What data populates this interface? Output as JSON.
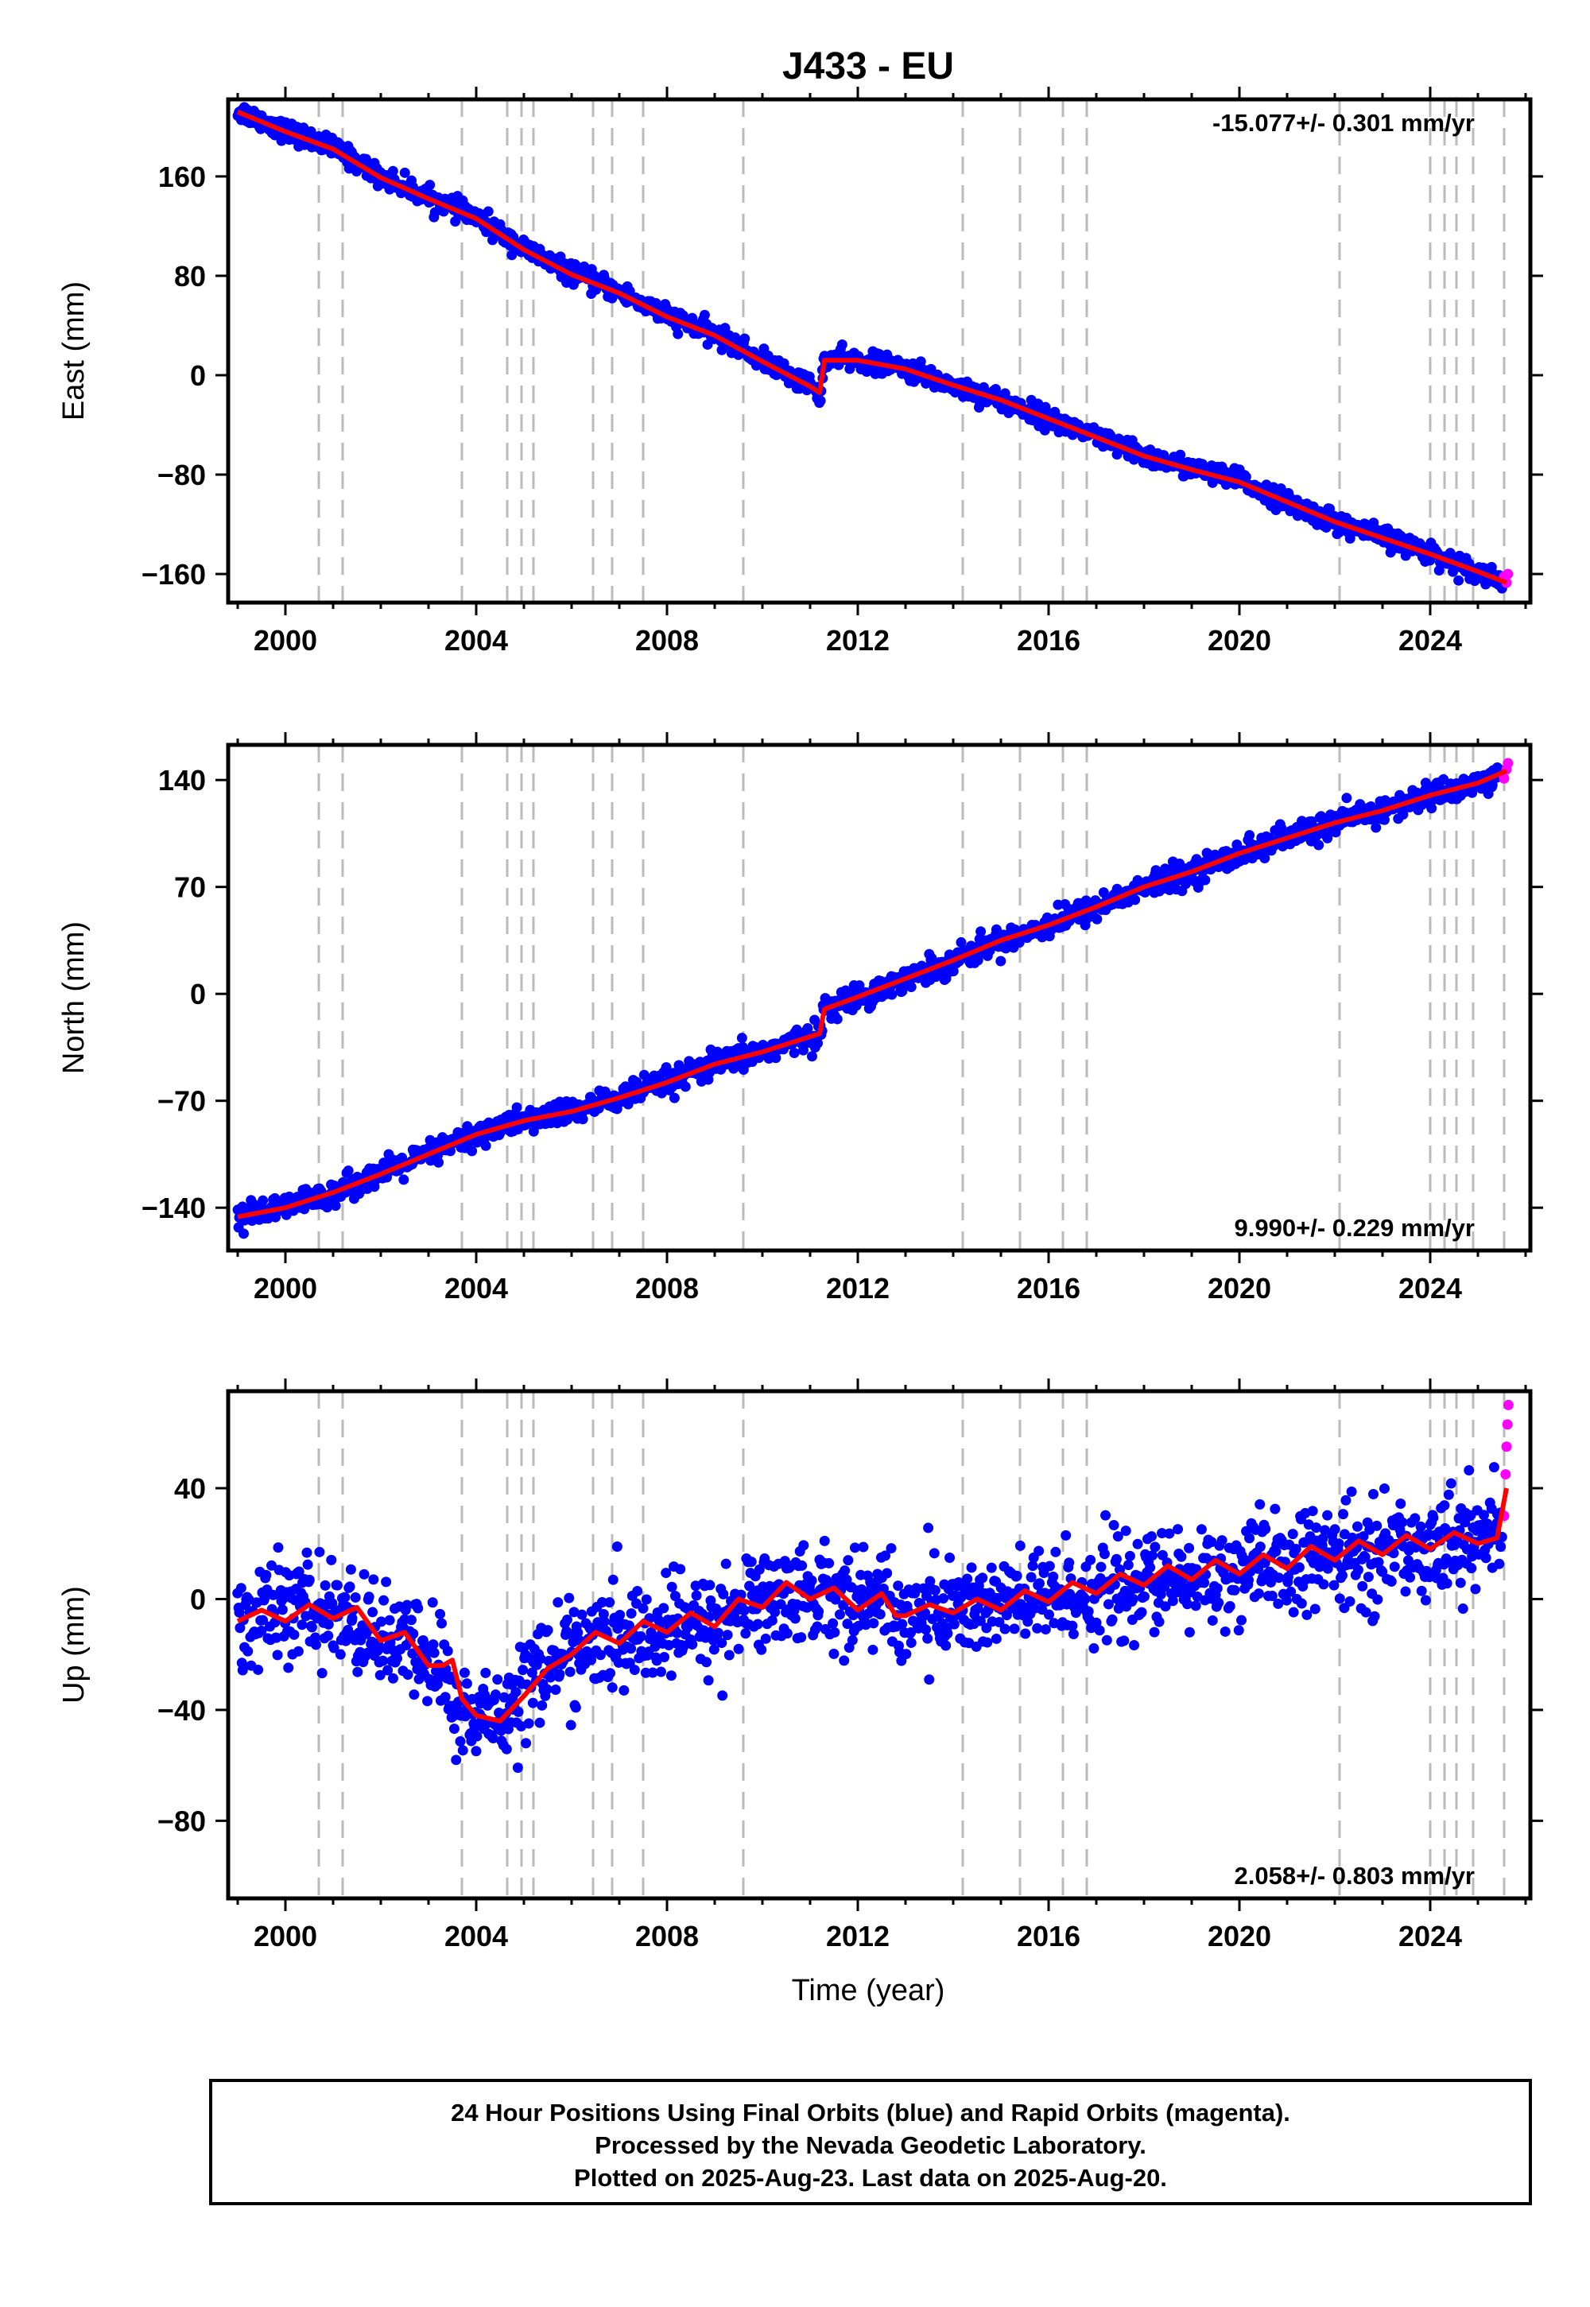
{
  "title": "J433 - EU",
  "colors": {
    "final_orbits": "#0000ff",
    "rapid_orbits": "#ff00ff",
    "model": "#ff0000",
    "event_line": "#bbbbbb"
  },
  "footer": {
    "line1": "24 Hour Positions Using Final Orbits (blue) and Rapid Orbits (magenta).",
    "line2": "Processed by the Nevada Geodetic Laboratory.",
    "line3": "Plotted on 2025-Aug-23. Last data on 2025-Aug-20."
  },
  "chart_data": [
    {
      "type": "scatter",
      "component": "east",
      "ylabel": "East (mm)",
      "rate_text": "-15.077+/- 0.301 mm/yr",
      "rate_position": "top-right",
      "xlim": [
        1998.8,
        2026.1
      ],
      "ylim": [
        -183,
        222
      ],
      "x_ticks": [
        2000,
        2004,
        2008,
        2012,
        2016,
        2020,
        2024
      ],
      "x_tick_labels": [
        "2000",
        "2004",
        "2008",
        "2012",
        "2016",
        "2020",
        "2024"
      ],
      "y_ticks": [
        160,
        80,
        0,
        -80,
        -160
      ],
      "y_tick_labels": [
        "160",
        "80",
        "0",
        "−80",
        "−160"
      ],
      "event_lines": [
        2000.7,
        2001.2,
        2003.7,
        2004.65,
        2004.95,
        2005.2,
        2006.45,
        2006.85,
        2007.5,
        2009.6,
        2014.2,
        2015.4,
        2016.3,
        2016.8,
        2022.1,
        2024.0,
        2024.3,
        2024.55,
        2024.9,
        2025.55
      ],
      "series": [
        {
          "name": "Final Orbits (blue)",
          "x": [
            1999.0,
            2000.0,
            2001.0,
            2002.0,
            2003.0,
            2004.0,
            2005.0,
            2006.0,
            2007.0,
            2008.0,
            2009.0,
            2010.0,
            2011.0,
            2011.2,
            2011.3,
            2012.0,
            2013.0,
            2014.0,
            2015.0,
            2016.0,
            2017.0,
            2018.0,
            2019.0,
            2020.0,
            2021.0,
            2022.0,
            2023.0,
            2024.0,
            2025.0,
            2025.5
          ],
          "y": [
            213,
            197,
            183,
            160,
            143,
            127,
            102,
            82,
            67,
            48,
            33,
            12,
            -8,
            -16,
            12,
            12,
            5,
            -8,
            -20,
            -35,
            -50,
            -65,
            -75,
            -85,
            -102,
            -118,
            -130,
            -143,
            -158,
            -165
          ]
        },
        {
          "name": "Rapid Orbits (magenta)",
          "x": [
            2025.55,
            2025.6,
            2025.63
          ],
          "y": [
            -162,
            -167,
            -160
          ]
        }
      ],
      "noise_mm": 4,
      "model": {
        "x": [
          1999.0,
          2000.0,
          2001.0,
          2002.0,
          2003.0,
          2004.0,
          2005.0,
          2006.0,
          2007.0,
          2008.0,
          2009.0,
          2010.0,
          2011.0,
          2011.2,
          2011.3,
          2012.0,
          2013.0,
          2014.0,
          2015.0,
          2016.0,
          2017.0,
          2018.0,
          2019.0,
          2020.0,
          2021.0,
          2022.0,
          2023.0,
          2024.0,
          2025.0,
          2025.6
        ],
        "y": [
          212,
          196,
          182,
          159,
          142,
          126,
          101,
          81,
          66,
          47,
          32,
          11,
          -9,
          -14,
          12,
          12,
          5,
          -8,
          -20,
          -35,
          -50,
          -65,
          -76,
          -86,
          -102,
          -118,
          -131,
          -144,
          -158,
          -167
        ]
      }
    },
    {
      "type": "scatter",
      "component": "north",
      "ylabel": "North (mm)",
      "rate_text": "9.990+/- 0.229 mm/yr",
      "rate_position": "bottom-right",
      "xlim": [
        1998.8,
        2026.1
      ],
      "ylim": [
        -168,
        163
      ],
      "x_ticks": [
        2000,
        2004,
        2008,
        2012,
        2016,
        2020,
        2024
      ],
      "x_tick_labels": [
        "2000",
        "2004",
        "2008",
        "2012",
        "2016",
        "2020",
        "2024"
      ],
      "y_ticks": [
        140,
        70,
        0,
        -70,
        -140
      ],
      "y_tick_labels": [
        "140",
        "70",
        "0",
        "−70",
        "−140"
      ],
      "event_lines": [
        2000.7,
        2001.2,
        2003.7,
        2004.65,
        2004.95,
        2005.2,
        2006.45,
        2006.85,
        2007.5,
        2009.6,
        2014.2,
        2015.4,
        2016.3,
        2016.8,
        2022.1,
        2024.0,
        2024.3,
        2024.55,
        2024.9,
        2025.55
      ],
      "series": [
        {
          "name": "Final Orbits (blue)",
          "x": [
            1999.0,
            2000.0,
            2001.0,
            2002.0,
            2003.0,
            2004.0,
            2005.0,
            2006.0,
            2007.0,
            2008.0,
            2009.0,
            2010.0,
            2011.0,
            2011.2,
            2011.3,
            2012.0,
            2013.0,
            2014.0,
            2015.0,
            2016.0,
            2017.0,
            2018.0,
            2019.0,
            2020.0,
            2021.0,
            2022.0,
            2023.0,
            2024.0,
            2025.0,
            2025.5
          ],
          "y": [
            -146,
            -140,
            -130,
            -118,
            -105,
            -92,
            -83,
            -77,
            -68,
            -58,
            -46,
            -38,
            -28,
            -26,
            -10,
            -2,
            10,
            22,
            35,
            45,
            57,
            70,
            80,
            92,
            102,
            112,
            120,
            130,
            138,
            143
          ]
        },
        {
          "name": "Rapid Orbits (magenta)",
          "x": [
            2025.55,
            2025.6,
            2025.63
          ],
          "y": [
            141,
            147,
            151
          ]
        }
      ],
      "noise_mm": 4,
      "model": {
        "x": [
          1999.0,
          2000.0,
          2001.0,
          2002.0,
          2003.0,
          2004.0,
          2005.0,
          2006.0,
          2007.0,
          2008.0,
          2009.0,
          2010.0,
          2011.0,
          2011.2,
          2011.3,
          2012.0,
          2013.0,
          2014.0,
          2015.0,
          2016.0,
          2017.0,
          2018.0,
          2019.0,
          2020.0,
          2021.0,
          2022.0,
          2023.0,
          2024.0,
          2025.0,
          2025.6
        ],
        "y": [
          -146,
          -140,
          -130,
          -118,
          -105,
          -92,
          -83,
          -77,
          -68,
          -58,
          -46,
          -38,
          -28,
          -26,
          -10,
          -2,
          10,
          22,
          35,
          45,
          57,
          70,
          80,
          92,
          102,
          112,
          120,
          130,
          138,
          146
        ]
      }
    },
    {
      "type": "scatter",
      "component": "up",
      "ylabel": "Up (mm)",
      "xlabel": "Time (year)",
      "rate_text": "2.058+/- 0.803 mm/yr",
      "rate_position": "bottom-right",
      "xlim": [
        1998.8,
        2026.1
      ],
      "ylim": [
        -108,
        75
      ],
      "x_ticks": [
        2000,
        2004,
        2008,
        2012,
        2016,
        2020,
        2024
      ],
      "x_tick_labels": [
        "2000",
        "2004",
        "2008",
        "2012",
        "2016",
        "2020",
        "2024"
      ],
      "y_ticks": [
        40,
        0,
        -40,
        -80
      ],
      "y_tick_labels": [
        "40",
        "0",
        "−40",
        "−80"
      ],
      "event_lines": [
        2000.7,
        2001.2,
        2003.7,
        2004.65,
        2004.95,
        2005.2,
        2006.45,
        2006.85,
        2007.5,
        2009.6,
        2014.2,
        2015.4,
        2016.3,
        2016.8,
        2022.1,
        2024.0,
        2024.3,
        2024.55,
        2024.9,
        2025.55
      ],
      "series": [
        {
          "name": "Final Orbits (blue)",
          "x": [
            1999.0,
            2000.0,
            2001.0,
            2002.0,
            2003.0,
            2003.3,
            2003.5,
            2004.0,
            2004.5,
            2005.0,
            2006.0,
            2007.0,
            2008.0,
            2009.0,
            2010.0,
            2011.0,
            2012.0,
            2012.6,
            2012.8,
            2013.0,
            2014.0,
            2015.0,
            2016.0,
            2017.0,
            2018.0,
            2019.0,
            2020.0,
            2021.0,
            2022.0,
            2023.0,
            2024.0,
            2025.0,
            2025.5
          ],
          "y": [
            -8,
            -3,
            -5,
            -14,
            -20,
            -25,
            -40,
            -43,
            -42,
            -30,
            -18,
            -15,
            -12,
            -8,
            0,
            3,
            0,
            0,
            -8,
            -5,
            -3,
            -2,
            0,
            3,
            5,
            7,
            10,
            12,
            15,
            17,
            20,
            22,
            25
          ]
        },
        {
          "name": "Rapid Orbits (magenta)",
          "x": [
            2025.55,
            2025.58,
            2025.6,
            2025.62,
            2025.64
          ],
          "y": [
            30,
            45,
            55,
            63,
            70
          ]
        }
      ],
      "noise_mm": 9,
      "model": {
        "x": [
          1999.0,
          1999.5,
          2000.0,
          2000.5,
          2001.0,
          2001.5,
          2002.0,
          2002.5,
          2003.0,
          2003.3,
          2003.5,
          2003.7,
          2004.0,
          2004.5,
          2005.0,
          2005.5,
          2006.0,
          2006.5,
          2007.0,
          2007.5,
          2008.0,
          2008.5,
          2009.0,
          2009.5,
          2010.0,
          2010.5,
          2011.0,
          2011.5,
          2012.0,
          2012.5,
          2012.8,
          2013.0,
          2013.5,
          2014.0,
          2014.5,
          2015.0,
          2015.5,
          2016.0,
          2016.5,
          2017.0,
          2017.5,
          2018.0,
          2018.5,
          2019.0,
          2019.5,
          2020.0,
          2020.5,
          2021.0,
          2021.5,
          2022.0,
          2022.5,
          2023.0,
          2023.5,
          2024.0,
          2024.5,
          2025.0,
          2025.4,
          2025.6
        ],
        "y": [
          -8,
          -4,
          -8,
          -2,
          -7,
          -3,
          -15,
          -12,
          -24,
          -24,
          -22,
          -36,
          -42,
          -44,
          -35,
          -25,
          -20,
          -12,
          -16,
          -8,
          -12,
          -5,
          -10,
          0,
          -3,
          6,
          0,
          4,
          -4,
          2,
          -6,
          -6,
          -2,
          -5,
          0,
          -4,
          3,
          -1,
          6,
          2,
          9,
          5,
          12,
          7,
          14,
          9,
          16,
          11,
          19,
          14,
          21,
          16,
          23,
          18,
          24,
          20,
          22,
          40
        ]
      }
    }
  ]
}
